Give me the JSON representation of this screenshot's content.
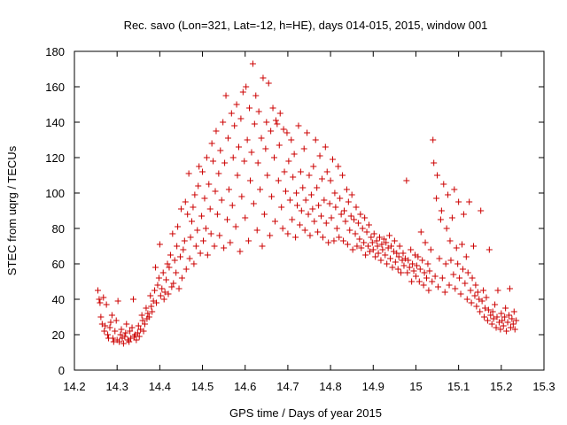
{
  "chart_data": {
    "type": "scatter",
    "title": "Rec. savo (Lon=321, Lat=-12, h=HE), days 014-015, 2015, window 001",
    "xlabel": "GPS time / Days of year 2015",
    "ylabel": "STEC from uqrg / TECUs",
    "xlim": [
      14.2,
      15.3
    ],
    "ylim": [
      0,
      180
    ],
    "xticks": [
      "14.2",
      "14.3",
      "14.4",
      "14.5",
      "14.6",
      "14.7",
      "14.8",
      "14.9",
      "15",
      "15.1",
      "15.2",
      "15.3"
    ],
    "yticks": [
      "0",
      "20",
      "40",
      "60",
      "80",
      "100",
      "120",
      "140",
      "160",
      "180"
    ],
    "marker": "+",
    "color": "#cc0000",
    "grid": false,
    "points": [
      [
        14.255,
        45
      ],
      [
        14.258,
        40
      ],
      [
        14.26,
        38
      ],
      [
        14.262,
        30
      ],
      [
        14.265,
        26
      ],
      [
        14.268,
        41
      ],
      [
        14.27,
        22
      ],
      [
        14.272,
        25
      ],
      [
        14.275,
        37
      ],
      [
        14.278,
        20
      ],
      [
        14.28,
        18
      ],
      [
        14.283,
        24
      ],
      [
        14.285,
        27
      ],
      [
        14.288,
        31
      ],
      [
        14.29,
        18
      ],
      [
        14.292,
        16
      ],
      [
        14.295,
        22
      ],
      [
        14.298,
        28
      ],
      [
        14.3,
        17
      ],
      [
        14.302,
        39
      ],
      [
        14.305,
        16
      ],
      [
        14.308,
        20
      ],
      [
        14.31,
        23
      ],
      [
        14.312,
        18
      ],
      [
        14.315,
        15
      ],
      [
        14.318,
        19
      ],
      [
        14.32,
        21
      ],
      [
        14.322,
        26
      ],
      [
        14.325,
        17
      ],
      [
        14.328,
        16
      ],
      [
        14.33,
        22
      ],
      [
        14.332,
        18
      ],
      [
        14.335,
        24
      ],
      [
        14.338,
        40
      ],
      [
        14.34,
        19
      ],
      [
        14.342,
        20
      ],
      [
        14.345,
        17
      ],
      [
        14.348,
        21
      ],
      [
        14.35,
        25
      ],
      [
        14.352,
        19
      ],
      [
        14.355,
        23
      ],
      [
        14.358,
        31
      ],
      [
        14.36,
        28
      ],
      [
        14.362,
        22
      ],
      [
        14.365,
        26
      ],
      [
        14.368,
        35
      ],
      [
        14.37,
        29
      ],
      [
        14.372,
        32
      ],
      [
        14.375,
        30
      ],
      [
        14.378,
        42
      ],
      [
        14.38,
        36
      ],
      [
        14.382,
        33
      ],
      [
        14.385,
        39
      ],
      [
        14.388,
        45
      ],
      [
        14.39,
        58
      ],
      [
        14.392,
        38
      ],
      [
        14.395,
        48
      ],
      [
        14.398,
        52
      ],
      [
        14.4,
        71
      ],
      [
        14.402,
        42
      ],
      [
        14.405,
        46
      ],
      [
        14.408,
        55
      ],
      [
        14.41,
        40
      ],
      [
        14.412,
        44
      ],
      [
        14.415,
        51
      ],
      [
        14.418,
        60
      ],
      [
        14.42,
        43
      ],
      [
        14.422,
        58
      ],
      [
        14.425,
        65
      ],
      [
        14.428,
        47
      ],
      [
        14.43,
        77
      ],
      [
        14.432,
        49
      ],
      [
        14.435,
        62
      ],
      [
        14.438,
        55
      ],
      [
        14.44,
        70
      ],
      [
        14.442,
        81
      ],
      [
        14.445,
        46
      ],
      [
        14.448,
        64
      ],
      [
        14.45,
        91
      ],
      [
        14.452,
        52
      ],
      [
        14.455,
        68
      ],
      [
        14.458,
        73
      ],
      [
        14.46,
        95
      ],
      [
        14.462,
        57
      ],
      [
        14.465,
        88
      ],
      [
        14.468,
        111
      ],
      [
        14.47,
        63
      ],
      [
        14.472,
        75
      ],
      [
        14.475,
        84
      ],
      [
        14.478,
        92
      ],
      [
        14.48,
        60
      ],
      [
        14.482,
        99
      ],
      [
        14.485,
        70
      ],
      [
        14.488,
        79
      ],
      [
        14.49,
        104
      ],
      [
        14.492,
        115
      ],
      [
        14.495,
        66
      ],
      [
        14.498,
        87
      ],
      [
        14.5,
        112
      ],
      [
        14.502,
        73
      ],
      [
        14.505,
        97
      ],
      [
        14.508,
        80
      ],
      [
        14.51,
        120
      ],
      [
        14.512,
        65
      ],
      [
        14.515,
        105
      ],
      [
        14.518,
        91
      ],
      [
        14.52,
        77
      ],
      [
        14.522,
        128
      ],
      [
        14.525,
        118
      ],
      [
        14.528,
        70
      ],
      [
        14.53,
        101
      ],
      [
        14.532,
        135
      ],
      [
        14.535,
        88
      ],
      [
        14.538,
        111
      ],
      [
        14.54,
        76
      ],
      [
        14.542,
        124
      ],
      [
        14.545,
        96
      ],
      [
        14.548,
        140
      ],
      [
        14.55,
        69
      ],
      [
        14.552,
        117
      ],
      [
        14.555,
        155
      ],
      [
        14.558,
        85
      ],
      [
        14.56,
        131
      ],
      [
        14.562,
        102
      ],
      [
        14.565,
        72
      ],
      [
        14.568,
        145
      ],
      [
        14.57,
        93
      ],
      [
        14.572,
        120
      ],
      [
        14.575,
        138
      ],
      [
        14.578,
        81
      ],
      [
        14.58,
        150
      ],
      [
        14.582,
        110
      ],
      [
        14.585,
        126
      ],
      [
        14.588,
        67
      ],
      [
        14.59,
        142
      ],
      [
        14.592,
        98
      ],
      [
        14.595,
        157
      ],
      [
        14.598,
        118
      ],
      [
        14.6,
        86
      ],
      [
        14.602,
        160
      ],
      [
        14.605,
        130
      ],
      [
        14.608,
        73
      ],
      [
        14.61,
        148
      ],
      [
        14.612,
        107
      ],
      [
        14.615,
        123
      ],
      [
        14.618,
        173
      ],
      [
        14.62,
        94
      ],
      [
        14.622,
        139
      ],
      [
        14.625,
        155
      ],
      [
        14.628,
        79
      ],
      [
        14.63,
        117
      ],
      [
        14.632,
        146
      ],
      [
        14.635,
        102
      ],
      [
        14.638,
        131
      ],
      [
        14.64,
        70
      ],
      [
        14.642,
        165
      ],
      [
        14.645,
        88
      ],
      [
        14.648,
        125
      ],
      [
        14.65,
        140
      ],
      [
        14.652,
        110
      ],
      [
        14.655,
        162
      ],
      [
        14.658,
        76
      ],
      [
        14.66,
        135
      ],
      [
        14.662,
        98
      ],
      [
        14.665,
        148
      ],
      [
        14.668,
        120
      ],
      [
        14.67,
        84
      ],
      [
        14.672,
        141
      ],
      [
        14.675,
        139
      ],
      [
        14.678,
        107
      ],
      [
        14.68,
        127
      ],
      [
        14.682,
        145
      ],
      [
        14.685,
        92
      ],
      [
        14.688,
        80
      ],
      [
        14.69,
        136
      ],
      [
        14.692,
        112
      ],
      [
        14.695,
        101
      ],
      [
        14.698,
        134
      ],
      [
        14.7,
        77
      ],
      [
        14.702,
        118
      ],
      [
        14.705,
        96
      ],
      [
        14.708,
        130
      ],
      [
        14.71,
        85
      ],
      [
        14.712,
        109
      ],
      [
        14.715,
        122
      ],
      [
        14.718,
        75
      ],
      [
        14.72,
        100
      ],
      [
        14.722,
        93
      ],
      [
        14.725,
        138
      ],
      [
        14.728,
        82
      ],
      [
        14.73,
        112
      ],
      [
        14.732,
        90
      ],
      [
        14.735,
        103
      ],
      [
        14.738,
        125
      ],
      [
        14.74,
        79
      ],
      [
        14.742,
        96
      ],
      [
        14.745,
        134
      ],
      [
        14.748,
        88
      ],
      [
        14.75,
        110
      ],
      [
        14.752,
        76
      ],
      [
        14.755,
        99
      ],
      [
        14.758,
        91
      ],
      [
        14.76,
        115
      ],
      [
        14.762,
        84
      ],
      [
        14.765,
        130
      ],
      [
        14.768,
        103
      ],
      [
        14.77,
        78
      ],
      [
        14.772,
        93
      ],
      [
        14.775,
        121
      ],
      [
        14.778,
        87
      ],
      [
        14.78,
        108
      ],
      [
        14.782,
        75
      ],
      [
        14.785,
        96
      ],
      [
        14.788,
        126
      ],
      [
        14.79,
        83
      ],
      [
        14.792,
        112
      ],
      [
        14.795,
        72
      ],
      [
        14.798,
        94
      ],
      [
        14.8,
        107
      ],
      [
        14.802,
        86
      ],
      [
        14.805,
        119
      ],
      [
        14.808,
        73
      ],
      [
        14.81,
        100
      ],
      [
        14.812,
        92
      ],
      [
        14.815,
        80
      ],
      [
        14.818,
        115
      ],
      [
        14.82,
        75
      ],
      [
        14.822,
        97
      ],
      [
        14.825,
        88
      ],
      [
        14.828,
        110
      ],
      [
        14.83,
        73
      ],
      [
        14.832,
        90
      ],
      [
        14.835,
        84
      ],
      [
        14.838,
        102
      ],
      [
        14.84,
        71
      ],
      [
        14.842,
        95
      ],
      [
        14.845,
        79
      ],
      [
        14.848,
        87
      ],
      [
        14.85,
        99
      ],
      [
        14.852,
        68
      ],
      [
        14.855,
        85
      ],
      [
        14.858,
        77
      ],
      [
        14.86,
        92
      ],
      [
        14.862,
        70
      ],
      [
        14.865,
        83
      ],
      [
        14.868,
        74
      ],
      [
        14.87,
        88
      ],
      [
        14.872,
        69
      ],
      [
        14.875,
        80
      ],
      [
        14.878,
        72
      ],
      [
        14.88,
        86
      ],
      [
        14.882,
        65
      ],
      [
        14.885,
        78
      ],
      [
        14.888,
        70
      ],
      [
        14.89,
        82
      ],
      [
        14.892,
        67
      ],
      [
        14.895,
        75
      ],
      [
        14.898,
        72
      ],
      [
        14.9,
        68
      ],
      [
        14.902,
        77
      ],
      [
        14.905,
        64
      ],
      [
        14.908,
        73
      ],
      [
        14.91,
        70
      ],
      [
        14.912,
        66
      ],
      [
        14.915,
        75
      ],
      [
        14.918,
        62
      ],
      [
        14.92,
        71
      ],
      [
        14.922,
        68
      ],
      [
        14.925,
        74
      ],
      [
        14.928,
        65
      ],
      [
        14.93,
        72
      ],
      [
        14.932,
        60
      ],
      [
        14.935,
        69
      ],
      [
        14.938,
        76
      ],
      [
        14.94,
        63
      ],
      [
        14.942,
        70
      ],
      [
        14.945,
        58
      ],
      [
        14.948,
        67
      ],
      [
        14.95,
        73
      ],
      [
        14.952,
        61
      ],
      [
        14.955,
        66
      ],
      [
        14.958,
        57
      ],
      [
        14.96,
        64
      ],
      [
        14.962,
        70
      ],
      [
        14.965,
        55
      ],
      [
        14.968,
        62
      ],
      [
        14.97,
        66
      ],
      [
        14.972,
        59
      ],
      [
        14.975,
        63
      ],
      [
        14.978,
        107
      ],
      [
        14.98,
        55
      ],
      [
        14.982,
        62
      ],
      [
        14.985,
        58
      ],
      [
        14.988,
        68
      ],
      [
        14.99,
        50
      ],
      [
        14.992,
        60
      ],
      [
        14.995,
        56
      ],
      [
        14.998,
        65
      ],
      [
        15.0,
        53
      ],
      [
        15.002,
        59
      ],
      [
        15.005,
        64
      ],
      [
        15.008,
        50
      ],
      [
        15.01,
        57
      ],
      [
        15.012,
        78
      ],
      [
        15.015,
        62
      ],
      [
        15.018,
        48
      ],
      [
        15.02,
        55
      ],
      [
        15.022,
        72
      ],
      [
        15.025,
        52
      ],
      [
        15.028,
        60
      ],
      [
        15.03,
        45
      ],
      [
        15.032,
        56
      ],
      [
        15.035,
        68
      ],
      [
        15.038,
        50
      ],
      [
        15.04,
        130
      ],
      [
        15.042,
        117
      ],
      [
        15.045,
        53
      ],
      [
        15.048,
        97
      ],
      [
        15.05,
        110
      ],
      [
        15.052,
        47
      ],
      [
        15.055,
        63
      ],
      [
        15.058,
        85
      ],
      [
        15.06,
        90
      ],
      [
        15.062,
        52
      ],
      [
        15.065,
        105
      ],
      [
        15.068,
        44
      ],
      [
        15.07,
        60
      ],
      [
        15.072,
        80
      ],
      [
        15.075,
        99
      ],
      [
        15.078,
        48
      ],
      [
        15.08,
        73
      ],
      [
        15.082,
        62
      ],
      [
        15.085,
        86
      ],
      [
        15.088,
        54
      ],
      [
        15.09,
        102
      ],
      [
        15.092,
        46
      ],
      [
        15.095,
        69
      ],
      [
        15.098,
        60
      ],
      [
        15.1,
        95
      ],
      [
        15.102,
        52
      ],
      [
        15.105,
        43
      ],
      [
        15.108,
        71
      ],
      [
        15.11,
        57
      ],
      [
        15.112,
        88
      ],
      [
        15.115,
        49
      ],
      [
        15.118,
        64
      ],
      [
        15.12,
        40
      ],
      [
        15.122,
        55
      ],
      [
        15.125,
        95
      ],
      [
        15.128,
        45
      ],
      [
        15.13,
        38
      ],
      [
        15.132,
        52
      ],
      [
        15.135,
        70
      ],
      [
        15.138,
        42
      ],
      [
        15.14,
        48
      ],
      [
        15.142,
        36
      ],
      [
        15.145,
        44
      ],
      [
        15.148,
        40
      ],
      [
        15.15,
        33
      ],
      [
        15.152,
        90
      ],
      [
        15.155,
        39
      ],
      [
        15.158,
        45
      ],
      [
        15.16,
        30
      ],
      [
        15.162,
        35
      ],
      [
        15.165,
        41
      ],
      [
        15.168,
        28
      ],
      [
        15.17,
        34
      ],
      [
        15.172,
        68
      ],
      [
        15.175,
        31
      ],
      [
        15.178,
        26
      ],
      [
        15.18,
        33
      ],
      [
        15.182,
        29
      ],
      [
        15.185,
        37
      ],
      [
        15.188,
        24
      ],
      [
        15.19,
        30
      ],
      [
        15.192,
        45
      ],
      [
        15.195,
        27
      ],
      [
        15.198,
        23
      ],
      [
        15.2,
        32
      ],
      [
        15.202,
        28
      ],
      [
        15.205,
        25
      ],
      [
        15.208,
        30
      ],
      [
        15.21,
        35
      ],
      [
        15.212,
        22
      ],
      [
        15.215,
        27
      ],
      [
        15.218,
        31
      ],
      [
        15.22,
        46
      ],
      [
        15.222,
        24
      ],
      [
        15.225,
        29
      ],
      [
        15.228,
        26
      ],
      [
        15.23,
        33
      ],
      [
        15.232,
        23
      ],
      [
        15.235,
        28
      ]
    ]
  }
}
